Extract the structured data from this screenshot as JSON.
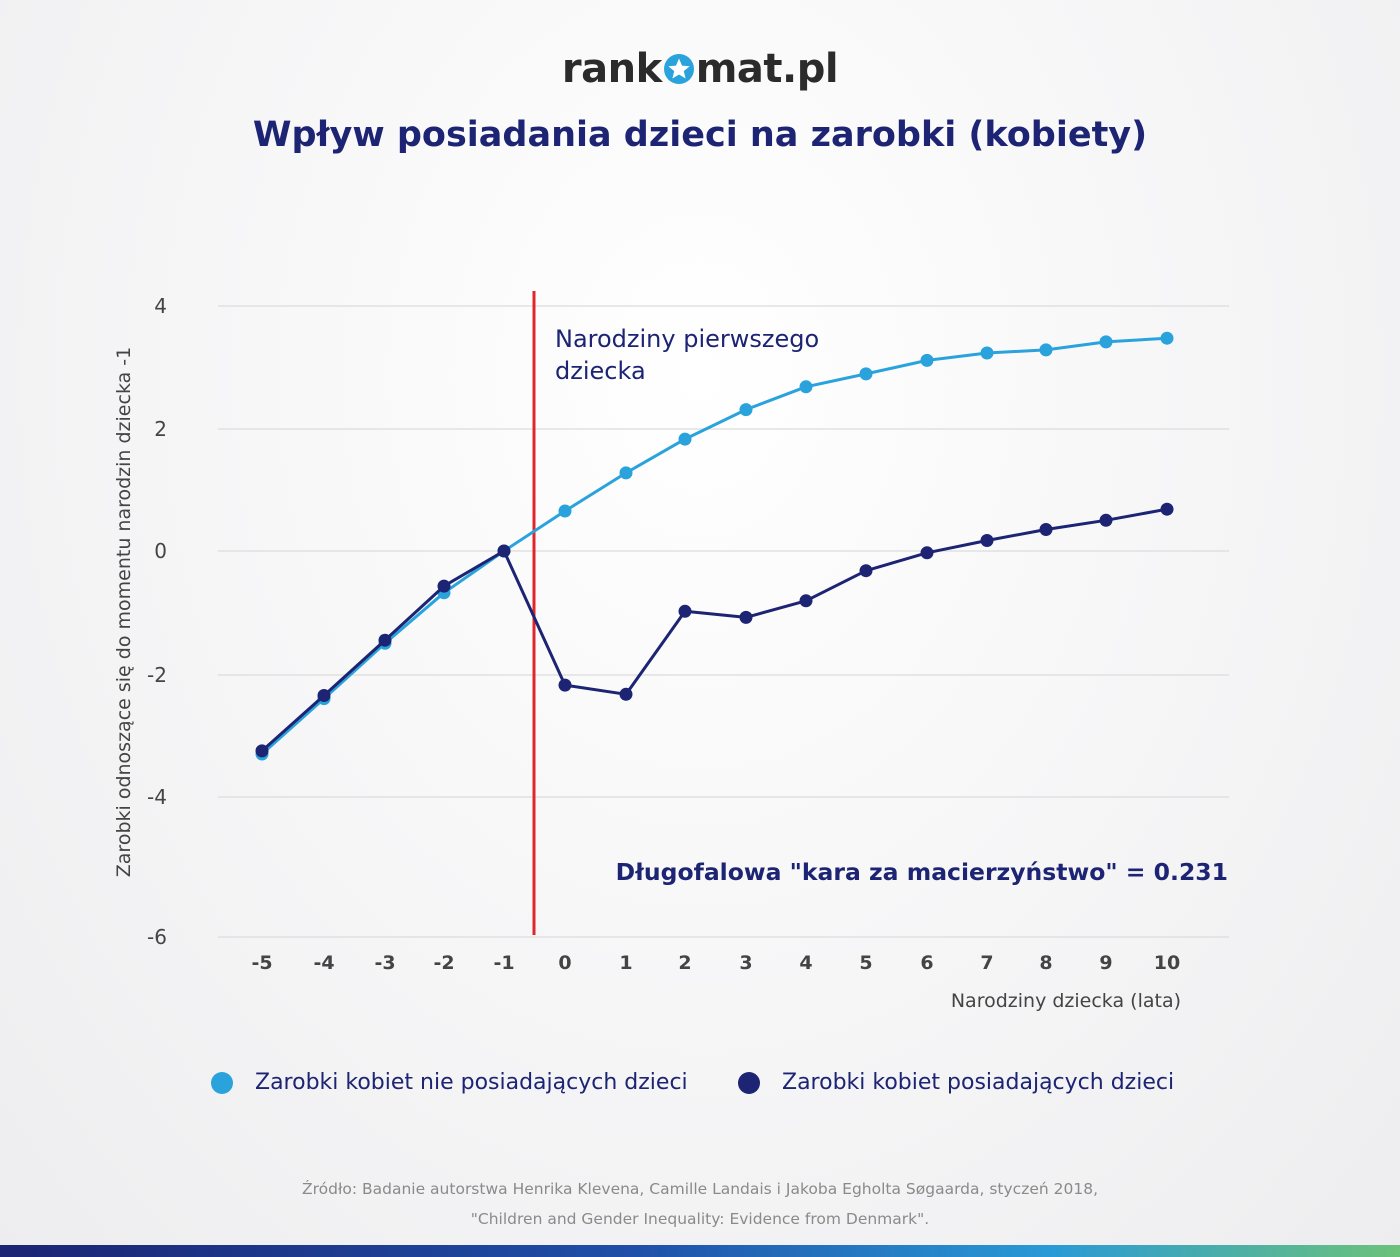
{
  "logo": {
    "text_left": "rank",
    "text_right": "mat.pl",
    "icon": "star-icon"
  },
  "colors": {
    "title": "#1c2473",
    "series_no_children": "#2aa3dd",
    "series_children": "#1c2473",
    "event_line": "#e0262b",
    "grid": "#dcdcdc",
    "axis_text": "#444444"
  },
  "chart_data": {
    "type": "line",
    "title": "Wpływ posiadania dzieci na zarobki (kobiety)",
    "xlabel": "Narodziny dziecka (lata)",
    "ylabel": "Zarobki odnoszące się do momentu narodzin dziecka -1",
    "x": [
      -5,
      -4,
      -3,
      -2,
      -1,
      0,
      1,
      2,
      3,
      4,
      5,
      6,
      7,
      8,
      9,
      10
    ],
    "x_tick_labels": [
      "-5",
      "-4",
      "-3",
      "-2",
      "-1",
      "0",
      "1",
      "2",
      "3",
      "4",
      "5",
      "6",
      "7",
      "8",
      "9",
      "10"
    ],
    "ylim": [
      -6,
      4
    ],
    "y_ticks": [
      4,
      2,
      0,
      -2,
      -4,
      -6
    ],
    "y_tick_labels": [
      "4",
      "2",
      "0",
      "-2",
      "-4",
      "-6"
    ],
    "grid": true,
    "legend_position": "bottom",
    "series": [
      {
        "name": "Zarobki kobiet nie posiadających dzieci",
        "values": [
          -3.3,
          -2.4,
          -1.5,
          -0.68,
          0,
          0.65,
          1.27,
          1.82,
          2.3,
          2.67,
          2.88,
          3.1,
          3.22,
          3.27,
          3.4,
          3.46
        ]
      },
      {
        "name": "Zarobki kobiet posiadających dzieci",
        "values": [
          -3.25,
          -2.35,
          -1.45,
          -0.57,
          0,
          -2.18,
          -2.33,
          -0.98,
          -1.08,
          -0.81,
          -0.32,
          -0.03,
          0.17,
          0.35,
          0.5,
          0.68
        ]
      }
    ],
    "event_line": {
      "x": -0.5,
      "label_line1": "Narodziny pierwszego",
      "label_line2": "dziecka"
    },
    "annotation": "Długofalowa \"kara za macierzyństwo\" = 0.231"
  },
  "source": {
    "line1": "Źródło: Badanie autorstwa Henrika Klevena, Camille Landais i Jakoba Egholta Søgaarda, styczeń 2018,",
    "line2": "\"Children and Gender Inequality: Evidence from Denmark\"."
  }
}
